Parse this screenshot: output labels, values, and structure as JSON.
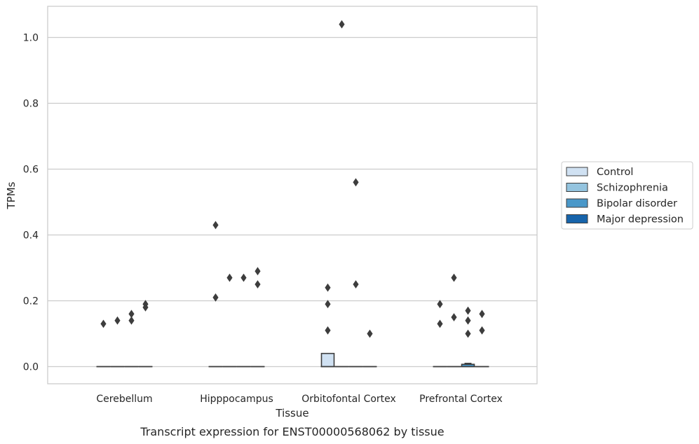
{
  "caption": "Transcript expression for ENST00000568062 by tissue",
  "chart_data": {
    "type": "box",
    "title": "",
    "xlabel": "Tissue",
    "ylabel": "TPMs",
    "categories": [
      "Cerebellum",
      "Hipppocampus",
      "Orbitofontal Cortex",
      "Prefrontal Cortex"
    ],
    "ylim": [
      -0.05,
      1.09
    ],
    "yticks": [
      0.0,
      0.2,
      0.4,
      0.6,
      0.8,
      1.0
    ],
    "ytick_labels": [
      "0.0",
      "0.2",
      "0.4",
      "0.6",
      "0.8",
      "1.0"
    ],
    "grid": "y",
    "legend_position": "right",
    "series": [
      {
        "name": "Control",
        "color": "#d0e1f2",
        "boxes": [
          {
            "q1": 0,
            "median": 0,
            "q3": 0,
            "whisker_low": 0,
            "whisker_high": 0,
            "outliers": [
              0.13
            ]
          },
          {
            "q1": 0,
            "median": 0,
            "q3": 0,
            "whisker_low": 0,
            "whisker_high": 0,
            "outliers": [
              0.43,
              0.21
            ]
          },
          {
            "q1": 0,
            "median": 0,
            "q3": 0.04,
            "whisker_low": 0,
            "whisker_high": 0.04,
            "outliers": [
              0.24,
              0.19,
              0.11
            ]
          },
          {
            "q1": 0,
            "median": 0,
            "q3": 0,
            "whisker_low": 0,
            "whisker_high": 0,
            "outliers": [
              0.19,
              0.13
            ]
          }
        ]
      },
      {
        "name": "Schizophrenia",
        "color": "#94c4df",
        "boxes": [
          {
            "q1": 0,
            "median": 0,
            "q3": 0,
            "whisker_low": 0,
            "whisker_high": 0,
            "outliers": [
              0.14
            ]
          },
          {
            "q1": 0,
            "median": 0,
            "q3": 0,
            "whisker_low": 0,
            "whisker_high": 0,
            "outliers": [
              0.27
            ]
          },
          {
            "q1": 0,
            "median": 0,
            "q3": 0,
            "whisker_low": 0,
            "whisker_high": 0,
            "outliers": [
              1.04
            ]
          },
          {
            "q1": 0,
            "median": 0,
            "q3": 0,
            "whisker_low": 0,
            "whisker_high": 0,
            "outliers": [
              0.27,
              0.15
            ]
          }
        ]
      },
      {
        "name": "Bipolar disorder",
        "color": "#4a98c9",
        "boxes": [
          {
            "q1": 0,
            "median": 0,
            "q3": 0,
            "whisker_low": 0,
            "whisker_high": 0,
            "outliers": [
              0.16,
              0.14
            ]
          },
          {
            "q1": 0,
            "median": 0,
            "q3": 0,
            "whisker_low": 0,
            "whisker_high": 0,
            "outliers": [
              0.27
            ]
          },
          {
            "q1": 0,
            "median": 0,
            "q3": 0,
            "whisker_low": 0,
            "whisker_high": 0,
            "outliers": [
              0.56,
              0.25
            ]
          },
          {
            "q1": 0,
            "median": 0,
            "q3": 0.007,
            "whisker_low": 0,
            "whisker_high": 0.01,
            "outliers": [
              0.17,
              0.14,
              0.1
            ]
          }
        ]
      },
      {
        "name": "Major depression",
        "color": "#1764ab",
        "boxes": [
          {
            "q1": 0,
            "median": 0,
            "q3": 0,
            "whisker_low": 0,
            "whisker_high": 0,
            "outliers": [
              0.19,
              0.18
            ]
          },
          {
            "q1": 0,
            "median": 0,
            "q3": 0,
            "whisker_low": 0,
            "whisker_high": 0,
            "outliers": [
              0.29,
              0.25
            ]
          },
          {
            "q1": 0,
            "median": 0,
            "q3": 0,
            "whisker_low": 0,
            "whisker_high": 0,
            "outliers": [
              0.1
            ]
          },
          {
            "q1": 0,
            "median": 0,
            "q3": 0,
            "whisker_low": 0,
            "whisker_high": 0,
            "outliers": [
              0.16,
              0.11
            ]
          }
        ]
      }
    ]
  }
}
